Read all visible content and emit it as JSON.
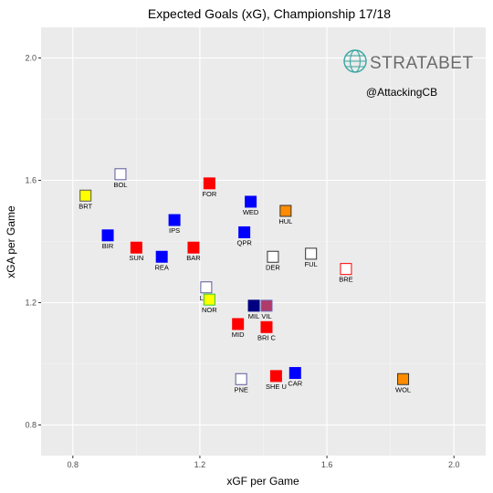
{
  "chart_data": {
    "type": "scatter",
    "title": "Expected Goals (xG), Championship 17/18",
    "xlabel": "xGF per Game",
    "ylabel": "xGA per Game",
    "xlim": [
      0.7,
      2.1
    ],
    "ylim": [
      0.7,
      2.1
    ],
    "x_ticks": [
      0.8,
      1.2,
      1.6,
      2.0
    ],
    "x_tick_labels": [
      "0.8",
      "1.2",
      "1.6",
      "2.0"
    ],
    "y_ticks": [
      0.8,
      1.2,
      1.6,
      2.0
    ],
    "y_tick_labels": [
      "0.8",
      "1.2",
      "1.6",
      "2.0"
    ],
    "grid": true,
    "points": [
      {
        "label": "BRT",
        "x": 0.84,
        "y": 1.55,
        "fill": "#ffff00",
        "stroke": "#555555"
      },
      {
        "label": "BOL",
        "x": 0.95,
        "y": 1.62,
        "fill": "#ffffff",
        "stroke": "#5a5a9a"
      },
      {
        "label": "FOR",
        "x": 1.23,
        "y": 1.59,
        "fill": "#ff0000",
        "stroke": "#ff0000"
      },
      {
        "label": "WED",
        "x": 1.36,
        "y": 1.53,
        "fill": "#0000ff",
        "stroke": "#0000ff"
      },
      {
        "label": "HUL",
        "x": 1.47,
        "y": 1.5,
        "fill": "#ff8c00",
        "stroke": "#333333"
      },
      {
        "label": "IPS",
        "x": 1.12,
        "y": 1.47,
        "fill": "#0000ff",
        "stroke": "#0000ff"
      },
      {
        "label": "BIR",
        "x": 0.91,
        "y": 1.42,
        "fill": "#0000ff",
        "stroke": "#0000ff"
      },
      {
        "label": "QPR",
        "x": 1.34,
        "y": 1.43,
        "fill": "#0000ff",
        "stroke": "#0000ff"
      },
      {
        "label": "SUN",
        "x": 1.0,
        "y": 1.38,
        "fill": "#ff0000",
        "stroke": "#ff0000"
      },
      {
        "label": "BAR",
        "x": 1.18,
        "y": 1.38,
        "fill": "#ff0000",
        "stroke": "#ff0000"
      },
      {
        "label": "REA",
        "x": 1.08,
        "y": 1.35,
        "fill": "#0000ff",
        "stroke": "#0000ff"
      },
      {
        "label": "DER",
        "x": 1.43,
        "y": 1.35,
        "fill": "#ffffff",
        "stroke": "#333333"
      },
      {
        "label": "FUL",
        "x": 1.55,
        "y": 1.36,
        "fill": "#ffffff",
        "stroke": "#333333"
      },
      {
        "label": "BRE",
        "x": 1.66,
        "y": 1.31,
        "fill": "#ffffff",
        "stroke": "#ff0000"
      },
      {
        "label": "LEE",
        "x": 1.22,
        "y": 1.25,
        "fill": "#ffffff",
        "stroke": "#5a5a9a"
      },
      {
        "label": "NOR",
        "x": 1.23,
        "y": 1.21,
        "fill": "#ffff00",
        "stroke": "#33cc33"
      },
      {
        "label": "MIL",
        "x": 1.37,
        "y": 1.19,
        "fill": "#000080",
        "stroke": "#000080"
      },
      {
        "label": "VIL",
        "x": 1.41,
        "y": 1.19,
        "fill": "#b03a6a",
        "stroke": "#6a6ab8"
      },
      {
        "label": "MID",
        "x": 1.32,
        "y": 1.13,
        "fill": "#ff0000",
        "stroke": "#ff0000"
      },
      {
        "label": "BRI C",
        "x": 1.41,
        "y": 1.12,
        "fill": "#ff0000",
        "stroke": "#ff0000"
      },
      {
        "label": "CAR",
        "x": 1.5,
        "y": 0.97,
        "fill": "#0000ff",
        "stroke": "#0000ff"
      },
      {
        "label": "SHE U",
        "x": 1.44,
        "y": 0.96,
        "fill": "#ff0000",
        "stroke": "#ff0000"
      },
      {
        "label": "PNE",
        "x": 1.33,
        "y": 0.95,
        "fill": "#ffffff",
        "stroke": "#5a5a9a"
      },
      {
        "label": "WOL",
        "x": 1.84,
        "y": 0.95,
        "fill": "#ff8c00",
        "stroke": "#333333"
      }
    ]
  },
  "brand": {
    "name": "STRATABET",
    "icon": "globe-icon",
    "color": "#3aa6a0"
  },
  "credit": "@AttackingCB",
  "colors": {
    "panel_background": "#ebebeb",
    "grid_major": "#ffffff",
    "grid_minor": "#f5f5f5"
  }
}
